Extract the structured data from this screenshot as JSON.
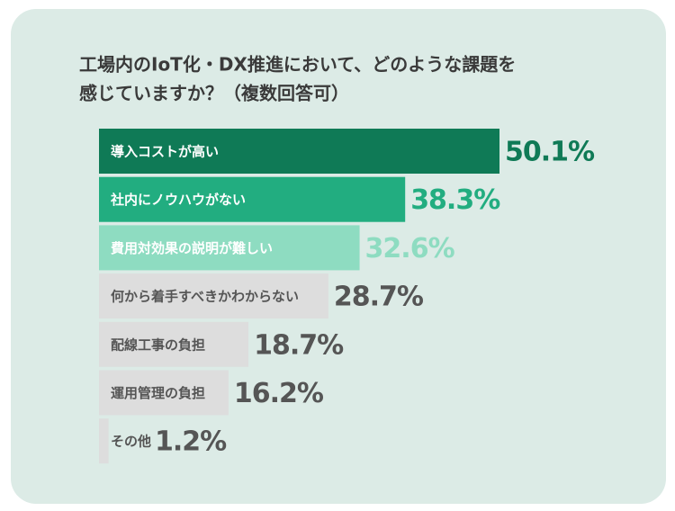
{
  "chart_data": {
    "type": "hbar",
    "title": [
      "工場内のIoT化・DX推進において、どのような課題を",
      "感じていますか？（複数回答可）"
    ],
    "categories": [
      "導入コストが高い",
      "社内にノウハウがない",
      "費用対効果の説明が難しい",
      "何から着手すべきかわからない",
      "配線工事の負担",
      "運用管理の負担",
      "その他"
    ],
    "values": [
      50.1,
      38.3,
      32.6,
      28.7,
      18.7,
      16.2,
      1.2
    ],
    "value_labels": [
      "50.1%",
      "38.3%",
      "32.6%",
      "28.7%",
      "18.7%",
      "16.2%",
      "1.2%"
    ],
    "colors": [
      "#0f7a56",
      "#22ad80",
      "#8edcc1",
      "#dddddd",
      "#dddddd",
      "#dddddd",
      "#dddddd"
    ],
    "label_colors": [
      "#ffffff",
      "#ffffff",
      "#ffffff",
      "#555555",
      "#555555",
      "#555555",
      "#555555"
    ],
    "value_label_colors": [
      "#0f7a56",
      "#22ad80",
      "#8edcc1",
      "#555555",
      "#555555",
      "#555555",
      "#555555"
    ]
  }
}
